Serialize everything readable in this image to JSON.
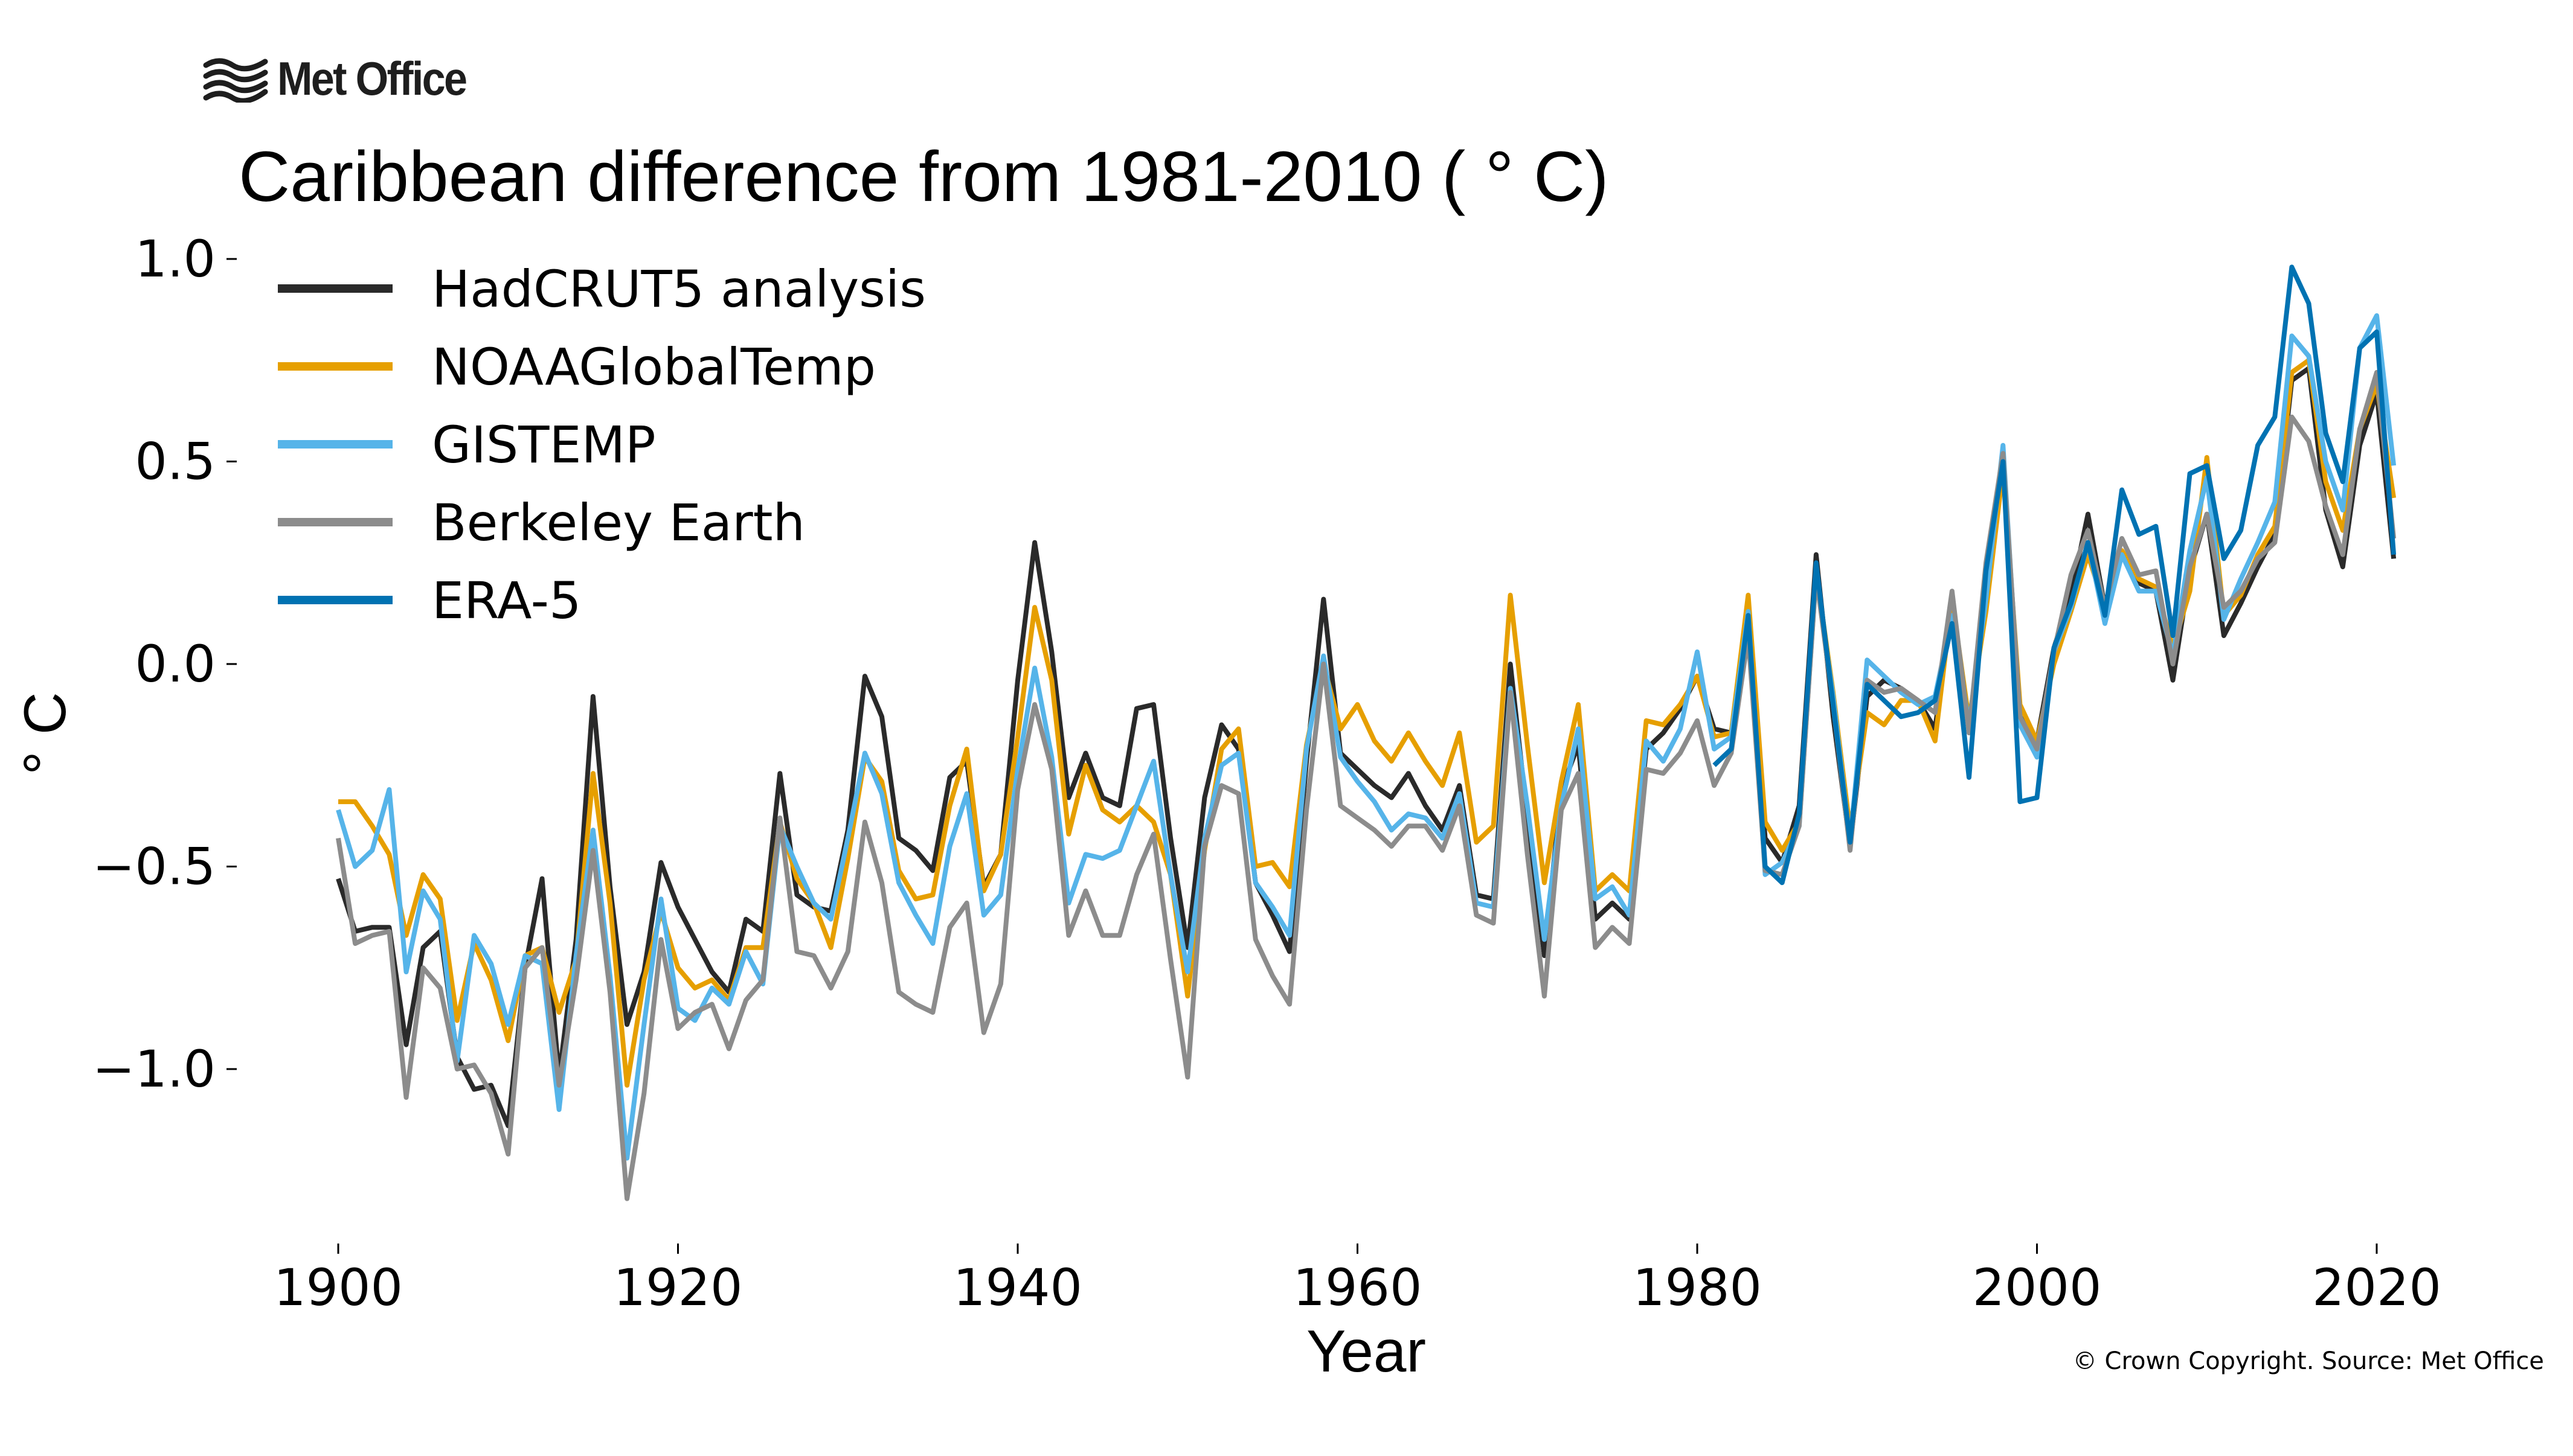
{
  "branding": {
    "logo_text": "Met Office",
    "copyright": "© Crown Copyright. Source: Met Office"
  },
  "chart_data": {
    "type": "line",
    "title": "Caribbean difference from 1981-2010 ( ° C)",
    "xlabel": "Year",
    "ylabel": "° C",
    "xlim": [
      1894,
      2027
    ],
    "ylim": [
      -1.42,
      1.08
    ],
    "xticks": [
      1900,
      1920,
      1940,
      1960,
      1980,
      2000,
      2020
    ],
    "xtick_labels": [
      "1900",
      "1920",
      "1940",
      "1960",
      "1980",
      "2000",
      "2020"
    ],
    "yticks": [
      1.0,
      0.5,
      0.0,
      -0.5,
      -1.0
    ],
    "ytick_labels": [
      "1.0",
      "0.5",
      "0.0",
      "−0.5",
      "−1.0"
    ],
    "grid": false,
    "legend_position": "top-left",
    "series": [
      {
        "name": "HadCRUT5 analysis",
        "color": "#2a2a2a",
        "start_year": 1900,
        "values": [
          -0.53,
          -0.66,
          -0.65,
          -0.65,
          -0.94,
          -0.7,
          -0.66,
          -0.97,
          -1.05,
          -1.04,
          -1.14,
          -0.75,
          -0.53,
          -1.02,
          -0.68,
          -0.08,
          -0.55,
          -0.89,
          -0.76,
          -0.49,
          -0.6,
          -0.68,
          -0.76,
          -0.81,
          -0.63,
          -0.66,
          -0.27,
          -0.57,
          -0.6,
          -0.61,
          -0.41,
          -0.03,
          -0.13,
          -0.43,
          -0.46,
          -0.51,
          -0.28,
          -0.24,
          -0.55,
          -0.47,
          -0.04,
          0.3,
          0.03,
          -0.33,
          -0.22,
          -0.33,
          -0.35,
          -0.11,
          -0.1,
          -0.43,
          -0.7,
          -0.33,
          -0.15,
          -0.21,
          -0.54,
          -0.62,
          -0.71,
          -0.24,
          0.16,
          -0.22,
          -0.26,
          -0.3,
          -0.33,
          -0.27,
          -0.35,
          -0.41,
          -0.3,
          -0.57,
          -0.58,
          0.0,
          -0.38,
          -0.72,
          -0.31,
          -0.2,
          -0.63,
          -0.59,
          -0.63,
          -0.21,
          -0.17,
          -0.11,
          -0.03,
          -0.16,
          -0.17,
          0.11,
          -0.43,
          -0.49,
          -0.35,
          0.27,
          -0.13,
          -0.45,
          -0.08,
          -0.04,
          -0.06,
          -0.09,
          -0.16,
          0.15,
          -0.16,
          0.2,
          0.49,
          -0.13,
          -0.19,
          0.04,
          0.17,
          0.37,
          0.14,
          0.27,
          0.2,
          0.18,
          -0.04,
          0.23,
          0.37,
          0.07,
          0.15,
          0.24,
          0.32,
          0.7,
          0.73,
          0.38,
          0.24,
          0.54,
          0.67,
          0.26
        ]
      },
      {
        "name": "NOAAGlobalTemp",
        "color": "#e69f00",
        "start_year": 1900,
        "values": [
          -0.34,
          -0.34,
          -0.4,
          -0.47,
          -0.67,
          -0.52,
          -0.58,
          -0.88,
          -0.69,
          -0.78,
          -0.93,
          -0.72,
          -0.7,
          -0.86,
          -0.73,
          -0.27,
          -0.59,
          -1.04,
          -0.78,
          -0.61,
          -0.75,
          -0.8,
          -0.78,
          -0.83,
          -0.7,
          -0.7,
          -0.39,
          -0.53,
          -0.59,
          -0.7,
          -0.48,
          -0.23,
          -0.29,
          -0.51,
          -0.58,
          -0.57,
          -0.35,
          -0.21,
          -0.56,
          -0.47,
          -0.18,
          0.14,
          -0.04,
          -0.42,
          -0.25,
          -0.36,
          -0.39,
          -0.35,
          -0.39,
          -0.52,
          -0.82,
          -0.46,
          -0.21,
          -0.16,
          -0.5,
          -0.49,
          -0.55,
          -0.2,
          0.0,
          -0.16,
          -0.1,
          -0.19,
          -0.24,
          -0.17,
          -0.24,
          -0.3,
          -0.17,
          -0.44,
          -0.4,
          0.17,
          -0.2,
          -0.54,
          -0.29,
          -0.1,
          -0.56,
          -0.52,
          -0.56,
          -0.14,
          -0.15,
          -0.1,
          -0.03,
          -0.18,
          -0.17,
          0.17,
          -0.39,
          -0.46,
          -0.39,
          0.23,
          -0.07,
          -0.41,
          -0.12,
          -0.15,
          -0.09,
          -0.09,
          -0.19,
          0.16,
          -0.14,
          0.13,
          0.48,
          -0.1,
          -0.19,
          0.0,
          0.13,
          0.27,
          0.14,
          0.28,
          0.21,
          0.19,
          0.04,
          0.18,
          0.51,
          0.12,
          0.17,
          0.27,
          0.34,
          0.72,
          0.75,
          0.45,
          0.33,
          0.58,
          0.69,
          0.41
        ]
      },
      {
        "name": "GISTEMP",
        "color": "#56b4e9",
        "start_year": 1900,
        "values": [
          -0.36,
          -0.5,
          -0.46,
          -0.31,
          -0.76,
          -0.56,
          -0.63,
          -0.98,
          -0.67,
          -0.74,
          -0.89,
          -0.72,
          -0.74,
          -1.1,
          -0.72,
          -0.41,
          -0.77,
          -1.22,
          -0.89,
          -0.58,
          -0.85,
          -0.88,
          -0.8,
          -0.84,
          -0.71,
          -0.79,
          -0.4,
          -0.5,
          -0.59,
          -0.63,
          -0.43,
          -0.22,
          -0.32,
          -0.54,
          -0.62,
          -0.69,
          -0.45,
          -0.32,
          -0.62,
          -0.57,
          -0.26,
          -0.01,
          -0.23,
          -0.59,
          -0.47,
          -0.48,
          -0.46,
          -0.35,
          -0.24,
          -0.52,
          -0.76,
          -0.43,
          -0.25,
          -0.22,
          -0.54,
          -0.6,
          -0.67,
          -0.21,
          0.02,
          -0.23,
          -0.29,
          -0.34,
          -0.41,
          -0.37,
          -0.38,
          -0.43,
          -0.32,
          -0.59,
          -0.6,
          -0.06,
          -0.35,
          -0.68,
          -0.35,
          -0.16,
          -0.58,
          -0.55,
          -0.62,
          -0.19,
          -0.24,
          -0.16,
          0.03,
          -0.21,
          -0.18,
          0.13,
          -0.52,
          -0.49,
          -0.4,
          0.22,
          -0.08,
          -0.44,
          0.01,
          -0.03,
          -0.07,
          -0.1,
          -0.08,
          0.12,
          -0.15,
          0.16,
          0.54,
          -0.15,
          -0.23,
          0.03,
          0.14,
          0.3,
          0.1,
          0.27,
          0.18,
          0.18,
          0.02,
          0.28,
          0.46,
          0.11,
          0.21,
          0.3,
          0.4,
          0.81,
          0.76,
          0.5,
          0.38,
          0.78,
          0.86,
          0.49
        ]
      },
      {
        "name": "Berkeley Earth",
        "color": "#8c8c8c",
        "start_year": 1900,
        "values": [
          -0.43,
          -0.69,
          -0.67,
          -0.66,
          -1.07,
          -0.75,
          -0.8,
          -1.0,
          -0.99,
          -1.06,
          -1.21,
          -0.75,
          -0.7,
          -1.04,
          -0.78,
          -0.46,
          -0.81,
          -1.32,
          -1.06,
          -0.68,
          -0.9,
          -0.86,
          -0.84,
          -0.95,
          -0.83,
          -0.78,
          -0.38,
          -0.71,
          -0.72,
          -0.8,
          -0.71,
          -0.39,
          -0.54,
          -0.81,
          -0.84,
          -0.86,
          -0.65,
          -0.59,
          -0.91,
          -0.79,
          -0.31,
          -0.1,
          -0.26,
          -0.67,
          -0.56,
          -0.67,
          -0.67,
          -0.52,
          -0.42,
          -0.73,
          -1.02,
          -0.45,
          -0.3,
          -0.32,
          -0.68,
          -0.77,
          -0.84,
          -0.36,
          0.0,
          -0.35,
          -0.38,
          -0.41,
          -0.45,
          -0.4,
          -0.4,
          -0.46,
          -0.35,
          -0.62,
          -0.64,
          -0.07,
          -0.47,
          -0.82,
          -0.36,
          -0.27,
          -0.7,
          -0.65,
          -0.69,
          -0.26,
          -0.27,
          -0.22,
          -0.14,
          -0.3,
          -0.22,
          0.07,
          -0.51,
          -0.52,
          -0.4,
          0.22,
          -0.1,
          -0.46,
          -0.04,
          -0.07,
          -0.06,
          -0.09,
          -0.12,
          0.18,
          -0.17,
          0.25,
          0.52,
          -0.13,
          -0.21,
          0.03,
          0.22,
          0.33,
          0.14,
          0.31,
          0.22,
          0.23,
          0.0,
          0.24,
          0.37,
          0.14,
          0.18,
          0.26,
          0.3,
          0.61,
          0.55,
          0.39,
          0.27,
          0.58,
          0.72,
          0.31
        ]
      },
      {
        "name": "ERA-5",
        "color": "#0072b2",
        "start_year": 1981,
        "values": [
          -0.25,
          -0.21,
          0.12,
          -0.5,
          -0.54,
          -0.37,
          0.25,
          -0.1,
          -0.44,
          -0.05,
          -0.09,
          -0.13,
          -0.12,
          -0.09,
          0.1,
          -0.28,
          0.23,
          0.5,
          -0.34,
          -0.33,
          0.04,
          0.15,
          0.3,
          0.12,
          0.43,
          0.32,
          0.34,
          0.07,
          0.47,
          0.49,
          0.26,
          0.33,
          0.54,
          0.61,
          0.98,
          0.89,
          0.57,
          0.45,
          0.78,
          0.82,
          0.27
        ]
      }
    ]
  }
}
